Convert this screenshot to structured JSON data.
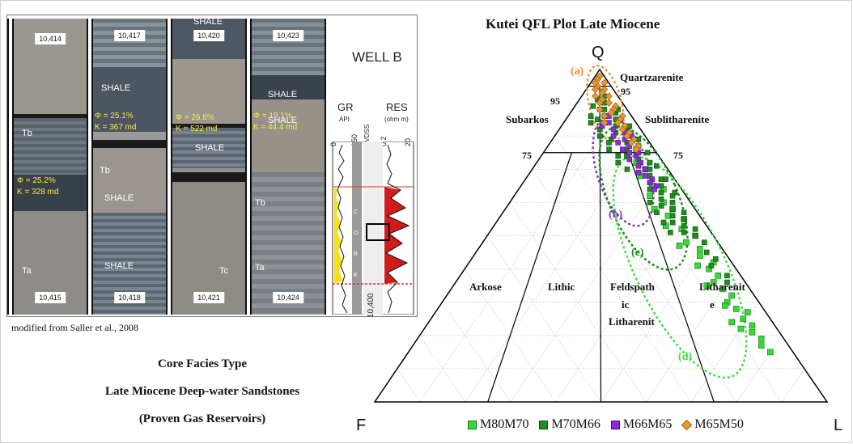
{
  "core_photo": {
    "segments": [
      {
        "top_depth": "10,414",
        "bottom_depth": "10,415"
      },
      {
        "top_depth": "10,417",
        "bottom_depth": "10,418"
      },
      {
        "top_depth": "10,420",
        "bottom_depth": "10,421"
      },
      {
        "top_depth": "10,423",
        "bottom_depth": "10,424"
      }
    ],
    "facies_labels": {
      "tb1": "Tb",
      "ta1": "Ta",
      "tb2": "Tb",
      "tb4": "Tb",
      "tc3": "Tc",
      "ta4": "Ta"
    },
    "shale_labels": [
      "SHALE",
      "SHALE",
      "SHALE",
      "SHALE",
      "SHALE",
      "SHALE",
      "SHALE"
    ],
    "porosity": [
      {
        "phi": "Φ = 25.2%",
        "k": "K = 328 md"
      },
      {
        "phi": "Φ = 25.1%",
        "k": "K = 367 md"
      },
      {
        "phi": "Φ = 26.8%",
        "k": "K = 522 md"
      },
      {
        "phi": "Φ = 19.1%",
        "k": "K = 44.4 md"
      }
    ],
    "well_log": {
      "title": "WELL B",
      "gr_label": "GR",
      "gr_unit": "API",
      "gr_min": "0",
      "gr_max": "150",
      "depth_unit": "ft TVDSS",
      "res_label": "RES",
      "res_unit": "(ohm m)",
      "res_min": "0.2",
      "res_max": "20",
      "core_letters": [
        "C",
        "O",
        "R",
        "E"
      ],
      "depth_value": "10,400"
    },
    "source_note": "modified from Saller et al., 2008"
  },
  "captions": [
    "Core Facies Type",
    "Late Miocene Deep-water Sandstones",
    "(Proven Gas Reservoirs)"
  ],
  "ternary": {
    "title": "Kutei QFL Plot Late Miocene",
    "apex_q": "Q",
    "apex_f": "F",
    "apex_l": "L",
    "tick_labels": {
      "left95": "95",
      "right95": "95",
      "left75": "75",
      "right75": "75"
    },
    "field_labels": {
      "quartzarenite": "Quartzarenite",
      "subarkos": "Subarkos",
      "sublitharenite": "Sublitharenite",
      "arkose": "Arkose",
      "lithic": "Lithic",
      "feldspath": "Feldspath",
      "ic": "ic",
      "litharenite_f": "Litharenit",
      "litharenit": "Litharenit",
      "e": "e"
    },
    "envelope_labels": {
      "a": "(a)",
      "b": "(b)",
      "c": "(c)",
      "d": "(d)"
    },
    "legend": [
      {
        "name": "M80M70",
        "color": "#33dd33",
        "shape": "square"
      },
      {
        "name": "M70M66",
        "color": "#1e8c1e",
        "shape": "square"
      },
      {
        "name": "M66M65",
        "color": "#8a2be2",
        "shape": "square"
      },
      {
        "name": "M65M50",
        "color": "#e8962e",
        "shape": "diamond"
      }
    ],
    "colors": {
      "a": "#f0903a",
      "b": "#7b3fb3",
      "c": "#1a8c1a",
      "d": "#44dd44"
    }
  },
  "chart_data": {
    "type": "scatter",
    "title": "Kutei QFL Plot Late Miocene",
    "axes": [
      "Q",
      "F",
      "L"
    ],
    "series": [
      {
        "name": "M80M70",
        "points_qfl": [
          [
            72,
            6,
            22
          ],
          [
            70,
            5,
            25
          ],
          [
            68,
            7,
            25
          ],
          [
            65,
            6,
            29
          ],
          [
            64,
            4,
            32
          ],
          [
            62,
            8,
            30
          ],
          [
            60,
            6,
            34
          ],
          [
            58,
            5,
            37
          ],
          [
            56,
            7,
            37
          ],
          [
            55,
            4,
            41
          ],
          [
            52,
            6,
            42
          ],
          [
            50,
            4,
            46
          ],
          [
            48,
            7,
            45
          ],
          [
            46,
            5,
            49
          ],
          [
            44,
            6,
            50
          ],
          [
            42,
            4,
            54
          ],
          [
            40,
            6,
            54
          ],
          [
            38,
            5,
            57
          ],
          [
            36,
            7,
            57
          ],
          [
            34,
            6,
            60
          ],
          [
            32,
            5,
            63
          ],
          [
            30,
            7,
            63
          ],
          [
            28,
            6,
            66
          ],
          [
            27,
            4,
            69
          ],
          [
            25,
            6,
            69
          ],
          [
            23,
            5,
            72
          ],
          [
            21,
            6,
            73
          ],
          [
            19,
            5,
            76
          ],
          [
            17,
            6,
            77
          ],
          [
            15,
            5,
            80
          ],
          [
            58,
            9,
            33
          ],
          [
            53,
            9,
            38
          ],
          [
            47,
            9,
            44
          ],
          [
            41,
            8,
            51
          ],
          [
            35,
            9,
            56
          ],
          [
            29,
            8,
            63
          ],
          [
            24,
            9,
            67
          ],
          [
            22,
            8,
            70
          ],
          [
            76,
            4,
            20
          ],
          [
            74,
            7,
            19
          ]
        ]
      },
      {
        "name": "M70M66",
        "points_qfl": [
          [
            90,
            4,
            6
          ],
          [
            88,
            5,
            7
          ],
          [
            87,
            3,
            10
          ],
          [
            86,
            6,
            8
          ],
          [
            85,
            4,
            11
          ],
          [
            84,
            7,
            9
          ],
          [
            83,
            5,
            12
          ],
          [
            82,
            3,
            15
          ],
          [
            81,
            6,
            13
          ],
          [
            80,
            4,
            16
          ],
          [
            79,
            8,
            13
          ],
          [
            78,
            5,
            17
          ],
          [
            77,
            3,
            20
          ],
          [
            76,
            6,
            18
          ],
          [
            75,
            4,
            21
          ],
          [
            74,
            7,
            19
          ],
          [
            73,
            5,
            22
          ],
          [
            72,
            3,
            25
          ],
          [
            71,
            6,
            23
          ],
          [
            70,
            4,
            26
          ],
          [
            69,
            7,
            24
          ],
          [
            68,
            5,
            27
          ],
          [
            67,
            3,
            30
          ],
          [
            66,
            6,
            28
          ],
          [
            65,
            4,
            31
          ],
          [
            64,
            7,
            29
          ],
          [
            63,
            5,
            32
          ],
          [
            62,
            3,
            35
          ],
          [
            61,
            6,
            33
          ],
          [
            60,
            4,
            36
          ],
          [
            59,
            7,
            34
          ],
          [
            58,
            5,
            37
          ],
          [
            57,
            3,
            40
          ],
          [
            56,
            6,
            38
          ],
          [
            55,
            4,
            41
          ],
          [
            54,
            7,
            39
          ],
          [
            53,
            5,
            42
          ],
          [
            52,
            3,
            45
          ],
          [
            51,
            6,
            43
          ],
          [
            50,
            4,
            46
          ],
          [
            89,
            7,
            4
          ],
          [
            86,
            9,
            5
          ],
          [
            84,
            10,
            6
          ],
          [
            82,
            9,
            9
          ],
          [
            80,
            10,
            10
          ],
          [
            78,
            9,
            13
          ],
          [
            76,
            10,
            14
          ],
          [
            74,
            9,
            17
          ],
          [
            72,
            10,
            18
          ],
          [
            70,
            9,
            21
          ],
          [
            83,
            2,
            15
          ],
          [
            79,
            2,
            19
          ],
          [
            75,
            2,
            23
          ],
          [
            71,
            2,
            27
          ],
          [
            67,
            2,
            31
          ],
          [
            63,
            2,
            35
          ],
          [
            60,
            9,
            31
          ],
          [
            57,
            9,
            34
          ],
          [
            54,
            9,
            37
          ],
          [
            51,
            9,
            40
          ],
          [
            48,
            3,
            49
          ],
          [
            45,
            4,
            51
          ],
          [
            43,
            3,
            54
          ],
          [
            41,
            5,
            54
          ],
          [
            38,
            3,
            59
          ],
          [
            36,
            4,
            60
          ],
          [
            92,
            3,
            5
          ],
          [
            91,
            5,
            4
          ],
          [
            88,
            2,
            10
          ],
          [
            85,
            8,
            7
          ]
        ]
      },
      {
        "name": "M66M65",
        "points_qfl": [
          [
            88,
            6,
            6
          ],
          [
            86,
            5,
            9
          ],
          [
            84,
            6,
            10
          ],
          [
            83,
            8,
            9
          ],
          [
            82,
            6,
            12
          ],
          [
            81,
            4,
            15
          ],
          [
            80,
            7,
            13
          ],
          [
            79,
            5,
            16
          ],
          [
            78,
            7,
            15
          ],
          [
            77,
            5,
            18
          ],
          [
            76,
            7,
            17
          ],
          [
            75,
            6,
            19
          ],
          [
            74,
            5,
            21
          ],
          [
            73,
            7,
            20
          ],
          [
            72,
            5,
            23
          ],
          [
            71,
            6,
            23
          ],
          [
            70,
            5,
            25
          ],
          [
            69,
            7,
            24
          ],
          [
            68,
            6,
            26
          ],
          [
            67,
            5,
            28
          ],
          [
            66,
            6,
            28
          ],
          [
            65,
            5,
            30
          ],
          [
            64,
            6,
            30
          ],
          [
            85,
            3,
            12
          ],
          [
            80,
            3,
            17
          ],
          [
            75,
            4,
            21
          ]
        ]
      },
      {
        "name": "M65M50",
        "points_qfl": [
          [
            98,
            1,
            1
          ],
          [
            97,
            2,
            1
          ],
          [
            96,
            1,
            3
          ],
          [
            95,
            3,
            2
          ],
          [
            94,
            2,
            4
          ],
          [
            93,
            3,
            4
          ],
          [
            92,
            2,
            6
          ],
          [
            91,
            4,
            5
          ],
          [
            90,
            3,
            7
          ],
          [
            89,
            2,
            9
          ],
          [
            88,
            3,
            9
          ],
          [
            87,
            4,
            9
          ],
          [
            86,
            2,
            12
          ],
          [
            85,
            3,
            12
          ],
          [
            84,
            4,
            12
          ],
          [
            83,
            3,
            14
          ],
          [
            82,
            4,
            14
          ],
          [
            81,
            3,
            16
          ],
          [
            80,
            4,
            16
          ],
          [
            79,
            3,
            18
          ],
          [
            78,
            4,
            18
          ],
          [
            77,
            3,
            20
          ],
          [
            76,
            4,
            20
          ],
          [
            96,
            3,
            1
          ],
          [
            94,
            4,
            2
          ],
          [
            92,
            5,
            3
          ],
          [
            90,
            5,
            5
          ],
          [
            88,
            6,
            6
          ],
          [
            86,
            6,
            8
          ],
          [
            84,
            7,
            9
          ]
        ]
      }
    ],
    "envelopes": [
      "(a)",
      "(b)",
      "(c)",
      "(d)"
    ],
    "grid": true,
    "legend_position": "bottom"
  }
}
